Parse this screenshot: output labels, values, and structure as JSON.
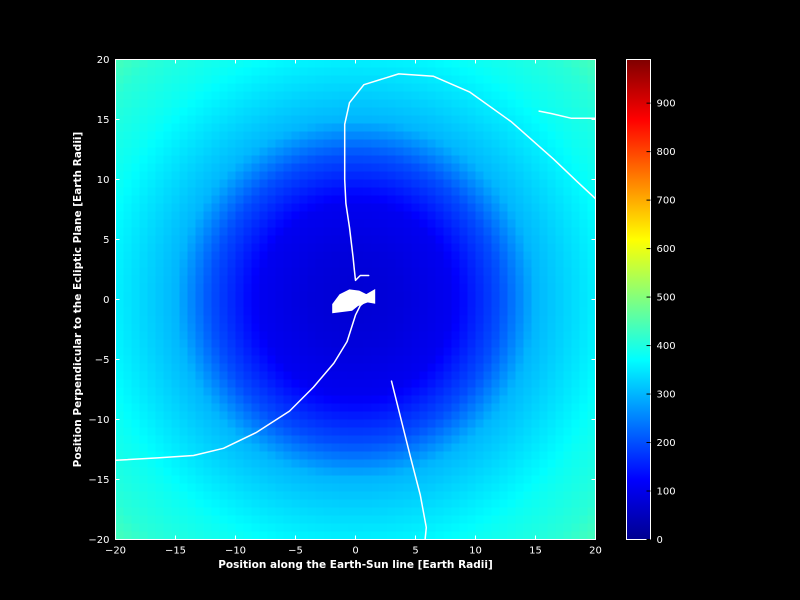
{
  "figure": {
    "background": "#000000"
  },
  "chart_data": {
    "type": "heatmap",
    "title": "",
    "xlabel": "Position along the Earth-Sun line [Earth Radii]",
    "ylabel": "Position Perpendicular to the Ecliptic Plane [Earth Radii]",
    "xlim": [
      -20,
      20
    ],
    "ylim": [
      -20,
      20
    ],
    "xticks": [
      -20,
      -15,
      -10,
      -5,
      0,
      5,
      10,
      15,
      20
    ],
    "yticks": [
      -20,
      -15,
      -10,
      -5,
      0,
      5,
      10,
      15,
      20
    ],
    "xtick_labels": [
      "−20",
      "−15",
      "−10",
      "−5",
      "0",
      "5",
      "10",
      "15",
      "20"
    ],
    "ytick_labels": [
      "−20",
      "−15",
      "−10",
      "−5",
      "0",
      "5",
      "10",
      "15",
      "20"
    ],
    "colormap": "jet",
    "grid": false,
    "colorbar": {
      "range": [
        0,
        990
      ],
      "ticks": [
        0,
        100,
        200,
        300,
        400,
        500,
        600,
        700,
        800,
        900
      ],
      "tick_labels": [
        "0",
        "100",
        "200",
        "300",
        "400",
        "500",
        "600",
        "700",
        "800",
        "900"
      ]
    },
    "field_model": {
      "description": "approximate radial field: low values (~80) near the origin, ~300 at 15 Re, ~440 at the corners",
      "radial_profile": [
        [
          0,
          80
        ],
        [
          4,
          90
        ],
        [
          8,
          110
        ],
        [
          12,
          200
        ],
        [
          15,
          300
        ],
        [
          18,
          335
        ],
        [
          22,
          380
        ],
        [
          26,
          410
        ],
        [
          28.3,
          440
        ]
      ]
    },
    "trajectories": [
      {
        "color": "#ffffff",
        "points": [
          [
            -20,
            -13.4
          ],
          [
            -16.5,
            -13.2
          ],
          [
            -13.5,
            -13.0
          ],
          [
            -11,
            -12.4
          ],
          [
            -8.3,
            -11.1
          ],
          [
            -5.5,
            -9.3
          ],
          [
            -3.5,
            -7.3
          ],
          [
            -1.8,
            -5.3
          ],
          [
            -0.7,
            -3.5
          ],
          [
            0,
            -1.3
          ],
          [
            0.4,
            -0.5
          ],
          [
            0.9,
            -0.1
          ]
        ]
      },
      {
        "color": "#ffffff",
        "points": [
          [
            5.8,
            -20
          ],
          [
            5.9,
            -19.0
          ],
          [
            5.4,
            -16.3
          ],
          [
            4.6,
            -13.2
          ],
          [
            3.8,
            -10.0
          ],
          [
            3.0,
            -6.8
          ]
        ]
      },
      {
        "color": "#ffffff",
        "points": [
          [
            1.1,
            2.0
          ],
          [
            0.4,
            2.0
          ],
          [
            0.2,
            1.8
          ],
          [
            0.0,
            1.6
          ],
          [
            -0.1,
            2.5
          ],
          [
            -0.2,
            3.5
          ],
          [
            -0.5,
            6.0
          ],
          [
            -0.8,
            8.0
          ],
          [
            -0.9,
            10.0
          ],
          [
            -0.9,
            12.0
          ],
          [
            -0.9,
            14.6
          ],
          [
            -0.5,
            16.4
          ],
          [
            0.7,
            17.9
          ],
          [
            3.6,
            18.8
          ],
          [
            6.5,
            18.6
          ],
          [
            9.5,
            17.3
          ],
          [
            13.0,
            14.8
          ],
          [
            16.5,
            11.7
          ],
          [
            18.5,
            9.8
          ],
          [
            20,
            8.4
          ]
        ]
      },
      {
        "color": "#ffffff",
        "points": [
          [
            15.3,
            15.7
          ],
          [
            16.3,
            15.5
          ],
          [
            18.0,
            15.1
          ],
          [
            20,
            15.1
          ]
        ]
      }
    ],
    "origin_blob": {
      "color": "#ffffff",
      "outline": [
        [
          -1.9,
          -0.4
        ],
        [
          -1.3,
          0.4
        ],
        [
          -0.5,
          0.8
        ],
        [
          0.3,
          0.7
        ],
        [
          0.9,
          0.4
        ],
        [
          1.6,
          0.8
        ],
        [
          1.6,
          -0.3
        ],
        [
          1.0,
          -0.2
        ],
        [
          0.2,
          -0.5
        ],
        [
          -0.3,
          -0.9
        ],
        [
          -1.9,
          -1.1
        ]
      ]
    }
  }
}
